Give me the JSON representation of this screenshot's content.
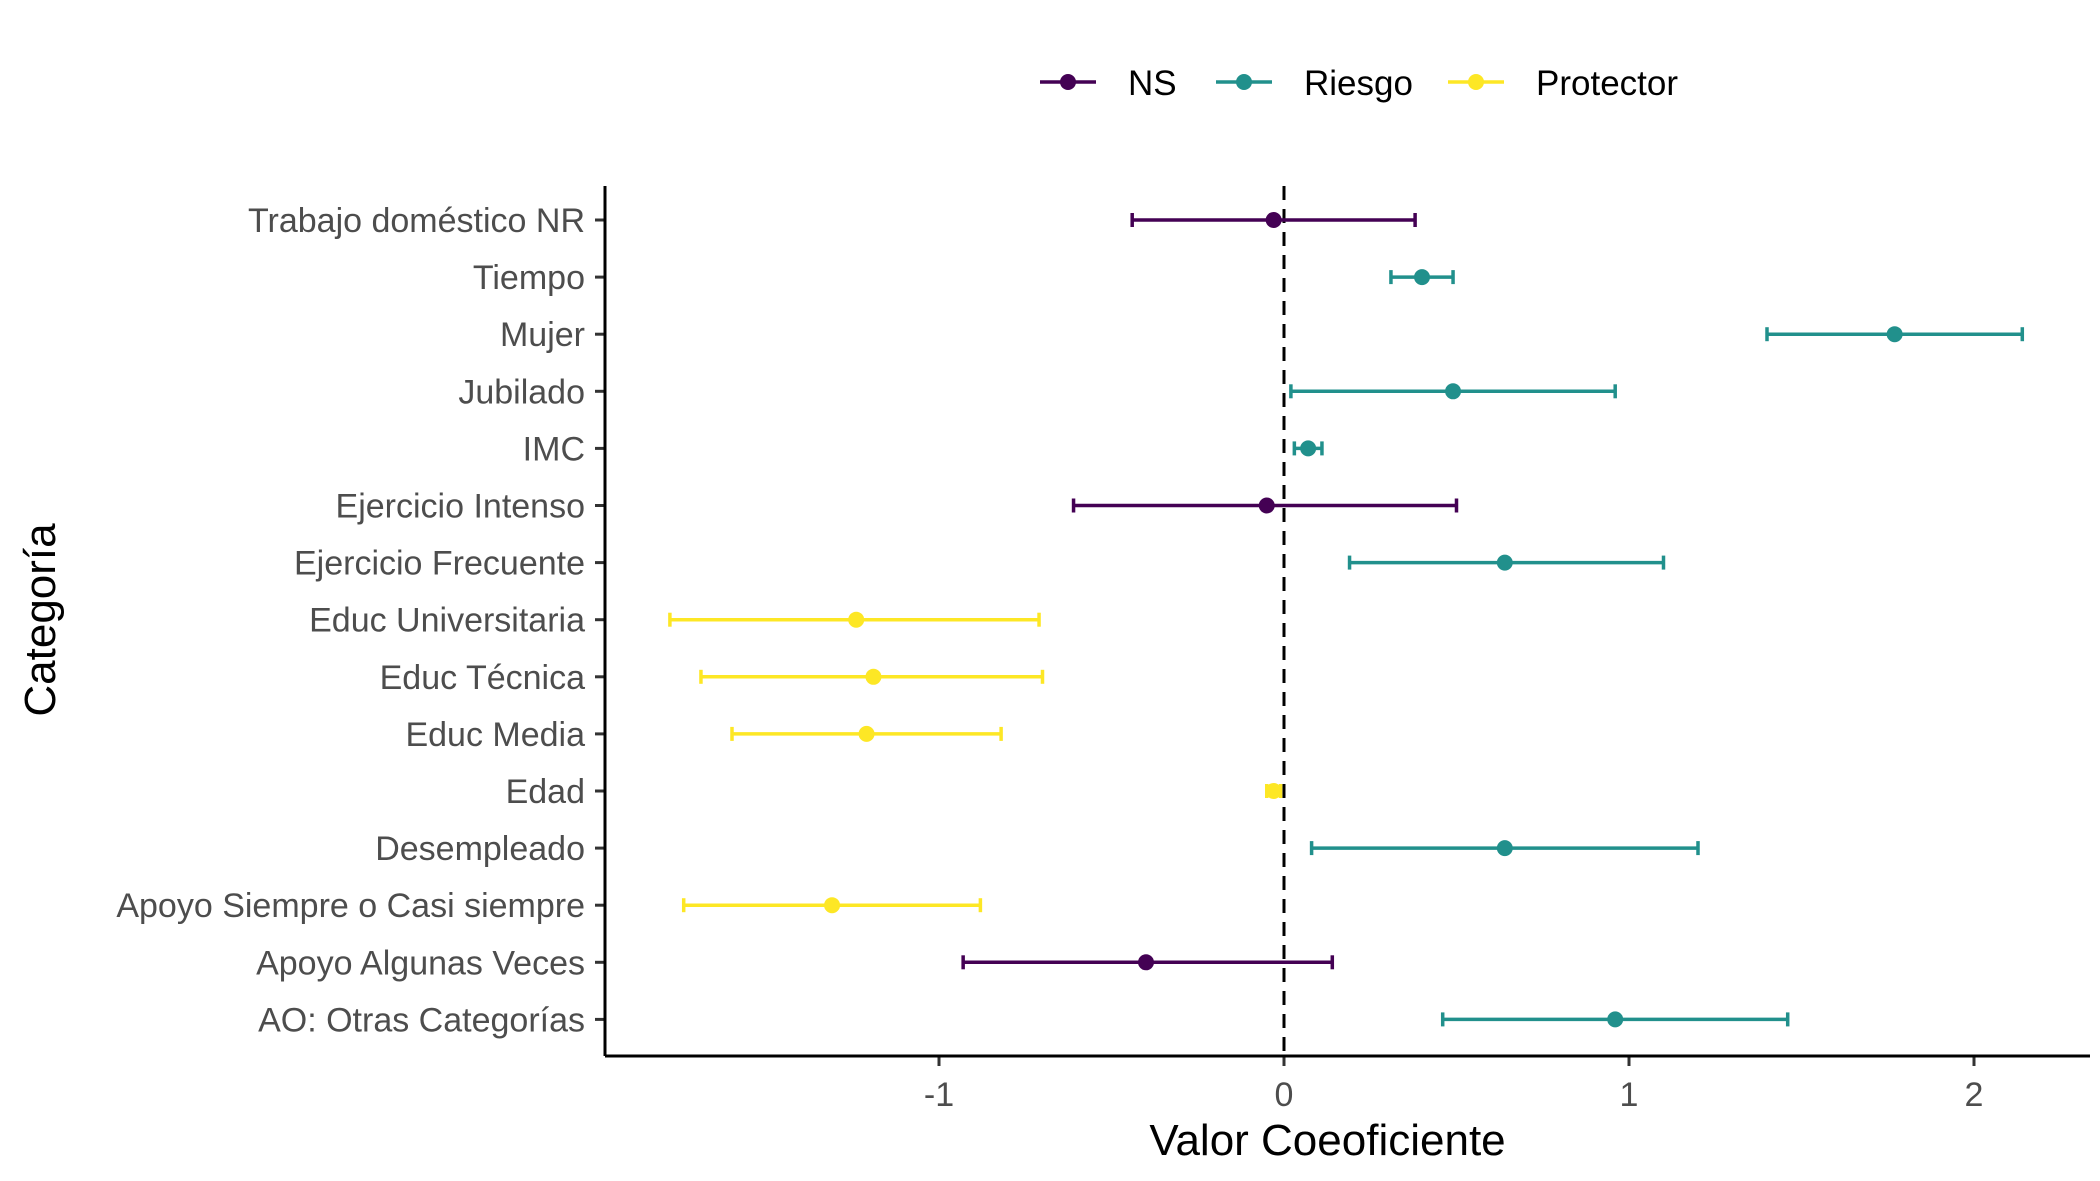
{
  "chart_data": {
    "type": "scatter",
    "xlabel": "Valor Coeoficiente",
    "ylabel": "Categoría",
    "xlim": [
      -1.97,
      2.33
    ],
    "x_ticks": [
      {
        "value": -1,
        "label": "-1"
      },
      {
        "value": 0,
        "label": "0"
      },
      {
        "value": 1,
        "label": "1"
      },
      {
        "value": 2,
        "label": "2"
      }
    ],
    "reference_line": 0,
    "grid": false,
    "legend_position": "top",
    "legend": [
      {
        "name": "NS",
        "color": "#440154"
      },
      {
        "name": "Riesgo",
        "color": "#21908C"
      },
      {
        "name": "Protector",
        "color": "#FDE725"
      }
    ],
    "categories": [
      "Trabajo doméstico NR",
      "Tiempo",
      "Mujer",
      "Jubilado",
      "IMC",
      "Ejercicio Intenso",
      "Ejercicio Frecuente",
      "Educ Universitaria",
      "Educ Técnica",
      "Educ Media",
      "Edad",
      "Desempleado",
      "Apoyo Siempre o Casi siempre",
      "Apoyo Algunas Veces",
      "AO: Otras Categorías"
    ],
    "points": [
      {
        "category": "Trabajo doméstico NR",
        "estimate": -0.03,
        "low": -0.44,
        "high": 0.38,
        "group": "NS"
      },
      {
        "category": "Tiempo",
        "estimate": 0.4,
        "low": 0.31,
        "high": 0.49,
        "group": "Riesgo"
      },
      {
        "category": "Mujer",
        "estimate": 1.77,
        "low": 1.4,
        "high": 2.14,
        "group": "Riesgo"
      },
      {
        "category": "Jubilado",
        "estimate": 0.49,
        "low": 0.02,
        "high": 0.96,
        "group": "Riesgo"
      },
      {
        "category": "IMC",
        "estimate": 0.07,
        "low": 0.03,
        "high": 0.11,
        "group": "Riesgo"
      },
      {
        "category": "Ejercicio Intenso",
        "estimate": -0.05,
        "low": -0.61,
        "high": 0.5,
        "group": "NS"
      },
      {
        "category": "Ejercicio Frecuente",
        "estimate": 0.64,
        "low": 0.19,
        "high": 1.1,
        "group": "Riesgo"
      },
      {
        "category": "Educ Universitaria",
        "estimate": -1.24,
        "low": -1.78,
        "high": -0.71,
        "group": "Protector"
      },
      {
        "category": "Educ Técnica",
        "estimate": -1.19,
        "low": -1.69,
        "high": -0.7,
        "group": "Protector"
      },
      {
        "category": "Educ Media",
        "estimate": -1.21,
        "low": -1.6,
        "high": -0.82,
        "group": "Protector"
      },
      {
        "category": "Edad",
        "estimate": -0.03,
        "low": -0.05,
        "high": -0.01,
        "group": "Protector"
      },
      {
        "category": "Desempleado",
        "estimate": 0.64,
        "low": 0.08,
        "high": 1.2,
        "group": "Riesgo"
      },
      {
        "category": "Apoyo Siempre o Casi siempre",
        "estimate": -1.31,
        "low": -1.74,
        "high": -0.88,
        "group": "Protector"
      },
      {
        "category": "Apoyo Algunas Veces",
        "estimate": -0.4,
        "low": -0.93,
        "high": 0.14,
        "group": "NS"
      },
      {
        "category": "AO: Otras Categorías",
        "estimate": 0.96,
        "low": 0.46,
        "high": 1.46,
        "group": "Riesgo"
      }
    ]
  }
}
